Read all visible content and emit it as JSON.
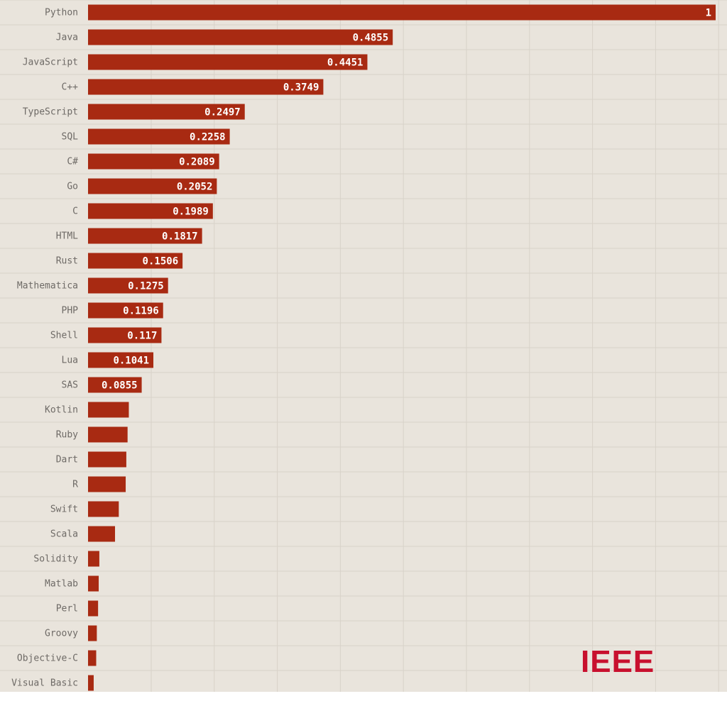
{
  "colors": {
    "background": "#e9e4dc",
    "bar": "#a82a12",
    "grid": "#d8d2c9",
    "label_text": "#6e6a66",
    "value_text": "#ffffff",
    "watermark": "#c8102e"
  },
  "watermark": {
    "text": "IEEE"
  },
  "chart_data": {
    "type": "bar",
    "orientation": "horizontal",
    "title": "",
    "xlabel": "",
    "ylabel": "",
    "xlim": [
      0,
      1
    ],
    "grid": true,
    "legend": "none",
    "categories": [
      "Python",
      "Java",
      "JavaScript",
      "C++",
      "TypeScript",
      "SQL",
      "C#",
      "Go",
      "C",
      "HTML",
      "Rust",
      "Mathematica",
      "PHP",
      "Shell",
      "Lua",
      "SAS",
      "Kotlin",
      "Ruby",
      "Dart",
      "R",
      "Swift",
      "Scala",
      "Solidity",
      "Matlab",
      "Perl",
      "Groovy",
      "Objective-C",
      "Visual Basic"
    ],
    "values": [
      1,
      0.4855,
      0.4451,
      0.3749,
      0.2497,
      0.2258,
      0.2089,
      0.2052,
      0.1989,
      0.1817,
      0.1506,
      0.1275,
      0.1196,
      0.117,
      0.1041,
      0.0855,
      0.065,
      0.063,
      0.061,
      0.06,
      0.049,
      0.043,
      0.018,
      0.017,
      0.016,
      0.014,
      0.013,
      0.009
    ],
    "value_labels": [
      "1",
      "0.4855",
      "0.4451",
      "0.3749",
      "0.2497",
      "0.2258",
      "0.2089",
      "0.2052",
      "0.1989",
      "0.1817",
      "0.1506",
      "0.1275",
      "0.1196",
      "0.117",
      "0.1041",
      "0.0855",
      "",
      "",
      "",
      "",
      "",
      "",
      "",
      "",
      "",
      "",
      "",
      ""
    ]
  }
}
